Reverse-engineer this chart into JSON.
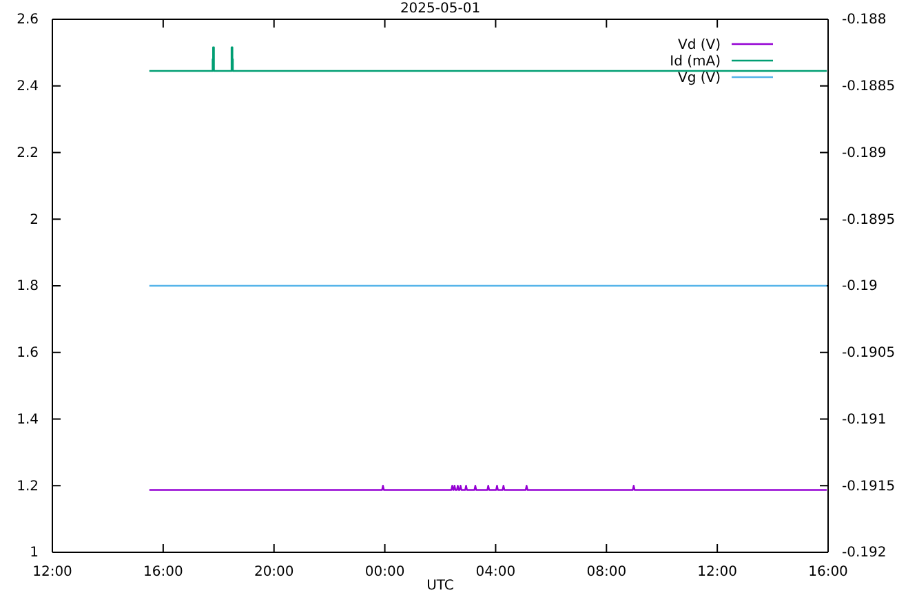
{
  "chart_data": {
    "type": "line",
    "title": "2025-05-01",
    "xlabel": "UTC",
    "xlim": [
      "2025-05-01T12:00",
      "2025-05-02T16:00"
    ],
    "xticks": [
      {
        "value": "2025-05-01T12:00",
        "label": "12:00"
      },
      {
        "value": "2025-05-01T16:00",
        "label": "16:00"
      },
      {
        "value": "2025-05-01T20:00",
        "label": "20:00"
      },
      {
        "value": "2025-05-02T00:00",
        "label": "00:00"
      },
      {
        "value": "2025-05-02T04:00",
        "label": "04:00"
      },
      {
        "value": "2025-05-02T08:00",
        "label": "08:00"
      },
      {
        "value": "2025-05-02T12:00",
        "label": "12:00"
      },
      {
        "value": "2025-05-02T16:00",
        "label": "16:00"
      }
    ],
    "ylim": [
      1,
      2.6
    ],
    "yticks": [
      1,
      1.2,
      1.4,
      1.6,
      1.8,
      2,
      2.2,
      2.4,
      2.6
    ],
    "y2lim": [
      -0.192,
      -0.188
    ],
    "y2ticks": [
      -0.192,
      -0.1915,
      -0.191,
      -0.1905,
      -0.19,
      -0.1895,
      -0.189,
      -0.1885,
      -0.188
    ],
    "legend": "top right",
    "grid": false,
    "marker": "none",
    "line_style": "solid",
    "series": [
      {
        "name": "Vd (V)",
        "color": "#9400d3",
        "x": [
          "2025-05-01T15:30",
          "2025-05-01T23:54",
          "2025-05-01T23:56",
          "2025-05-01T23:58",
          "2025-05-02T02:24",
          "2025-05-02T02:26",
          "2025-05-02T02:28",
          "2025-05-02T02:29",
          "2025-05-02T02:31",
          "2025-05-02T02:33",
          "2025-05-02T02:36",
          "2025-05-02T02:38",
          "2025-05-02T02:40",
          "2025-05-02T02:42",
          "2025-05-02T02:44",
          "2025-05-02T02:46",
          "2025-05-02T02:54",
          "2025-05-02T02:56",
          "2025-05-02T02:58",
          "2025-05-02T03:14",
          "2025-05-02T03:16",
          "2025-05-02T03:18",
          "2025-05-02T03:42",
          "2025-05-02T03:44",
          "2025-05-02T03:46",
          "2025-05-02T04:01",
          "2025-05-02T04:03",
          "2025-05-02T04:05",
          "2025-05-02T04:15",
          "2025-05-02T04:17",
          "2025-05-02T04:19",
          "2025-05-02T05:05",
          "2025-05-02T05:07",
          "2025-05-02T05:09",
          "2025-05-02T08:57",
          "2025-05-02T08:59",
          "2025-05-02T09:01",
          "2025-05-02T15:57"
        ],
        "values": [
          1.187,
          1.187,
          1.2,
          1.187,
          1.187,
          1.2,
          1.187,
          1.187,
          1.2,
          1.187,
          1.187,
          1.2,
          1.187,
          1.187,
          1.2,
          1.187,
          1.187,
          1.2,
          1.187,
          1.187,
          1.2,
          1.187,
          1.187,
          1.2,
          1.187,
          1.187,
          1.2,
          1.187,
          1.187,
          1.2,
          1.187,
          1.187,
          1.2,
          1.187,
          1.187,
          1.2,
          1.187,
          1.187
        ]
      },
      {
        "name": "Id (mA)",
        "color": "#009e73",
        "x": [
          "2025-05-01T15:30",
          "2025-05-01T17:47",
          "2025-05-01T17:47",
          "2025-05-01T17:48",
          "2025-05-01T17:48",
          "2025-05-01T17:50",
          "2025-05-01T17:50",
          "2025-05-01T18:28",
          "2025-05-01T18:28",
          "2025-05-01T18:30",
          "2025-05-01T18:30",
          "2025-05-01T18:31",
          "2025-05-01T18:31",
          "2025-05-02T15:57"
        ],
        "values": [
          2.445,
          2.445,
          2.48,
          2.48,
          2.516,
          2.516,
          2.445,
          2.445,
          2.516,
          2.516,
          2.48,
          2.48,
          2.445,
          2.445
        ]
      },
      {
        "name": "Vg (V)",
        "color": "#56b4e9",
        "axis": "y2",
        "x": [
          "2025-05-01T15:30",
          "2025-05-02T15:57"
        ],
        "values": [
          -0.19,
          -0.19
        ]
      }
    ]
  }
}
